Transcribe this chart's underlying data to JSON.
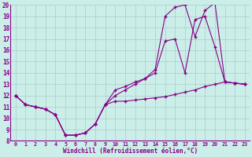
{
  "xlabel": "Windchill (Refroidissement éolien,°C)",
  "xlim": [
    -0.5,
    23.5
  ],
  "ylim": [
    8,
    20
  ],
  "xticks": [
    0,
    1,
    2,
    3,
    4,
    5,
    6,
    7,
    8,
    9,
    10,
    11,
    12,
    13,
    14,
    15,
    16,
    17,
    18,
    19,
    20,
    21,
    22,
    23
  ],
  "yticks": [
    8,
    9,
    10,
    11,
    12,
    13,
    14,
    15,
    16,
    17,
    18,
    19,
    20
  ],
  "bg_color": "#cceee8",
  "grid_color": "#aacccc",
  "line_color": "#880088",
  "line1_x": [
    0,
    1,
    2,
    3,
    4,
    5,
    6,
    7,
    8,
    9,
    10,
    11,
    12,
    13,
    14,
    15,
    16,
    17,
    18,
    19,
    20,
    21,
    22,
    23
  ],
  "line1_y": [
    12,
    11.2,
    11.0,
    10.8,
    10.3,
    8.5,
    8.5,
    8.7,
    9.5,
    11.2,
    11.5,
    11.5,
    11.6,
    11.7,
    11.8,
    11.9,
    12.1,
    12.3,
    12.5,
    12.8,
    13.0,
    13.2,
    13.1,
    13.0
  ],
  "line2_x": [
    0,
    1,
    2,
    3,
    4,
    5,
    6,
    7,
    8,
    9,
    10,
    11,
    12,
    13,
    14,
    15,
    16,
    17,
    18,
    19,
    20,
    21,
    22,
    23
  ],
  "line2_y": [
    12,
    11.2,
    11.0,
    10.8,
    10.3,
    8.5,
    8.5,
    8.7,
    9.5,
    11.2,
    12.5,
    12.8,
    13.2,
    13.5,
    14.0,
    16.8,
    17.0,
    14.0,
    18.7,
    19.0,
    16.3,
    13.2,
    13.1,
    13.0
  ],
  "line3_x": [
    0,
    1,
    2,
    3,
    4,
    5,
    6,
    7,
    8,
    9,
    10,
    11,
    12,
    13,
    14,
    15,
    16,
    17,
    18,
    19,
    20,
    21,
    22,
    23
  ],
  "line3_y": [
    12,
    11.2,
    11.0,
    10.8,
    10.3,
    8.5,
    8.5,
    8.7,
    9.5,
    11.2,
    12.0,
    12.5,
    13.0,
    13.5,
    14.3,
    19.0,
    19.8,
    20.0,
    17.2,
    19.5,
    20.2,
    13.2,
    13.1,
    13.0
  ]
}
